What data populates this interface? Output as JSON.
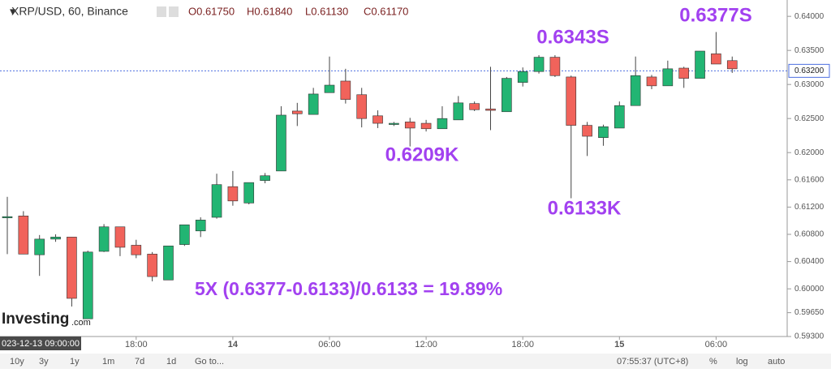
{
  "chart_data": {
    "type": "candlestick",
    "title": "XRP/USD, 60, Binance",
    "ohlc_legend": [
      "O0.61750",
      "H0.61840",
      "L0.61130",
      "C0.61170"
    ],
    "categories": [
      null,
      null,
      null,
      null,
      null,
      null,
      null,
      null,
      "18:00",
      null,
      null,
      null,
      null,
      null,
      "14",
      null,
      null,
      null,
      null,
      null,
      "06:00",
      null,
      null,
      null,
      null,
      null,
      "12:00",
      null,
      null,
      null,
      null,
      null,
      "18:00",
      null,
      null,
      null,
      null,
      null,
      "15",
      null,
      null,
      null,
      null,
      null,
      "06:00",
      null
    ],
    "series": {
      "open": [
        0.6106,
        0.6107,
        0.605,
        0.6073,
        0.6076,
        0.5956,
        0.6055,
        0.6091,
        0.6064,
        0.6051,
        0.6013,
        0.6065,
        0.6085,
        0.6105,
        0.615,
        0.6126,
        0.6159,
        0.6173,
        0.6261,
        0.6256,
        0.6288,
        0.6305,
        0.6285,
        0.6254,
        0.6243,
        0.6245,
        0.6243,
        0.6235,
        0.6248,
        0.6272,
        0.6264,
        0.626,
        0.6303,
        0.6319,
        0.634,
        0.6311,
        0.624,
        0.6222,
        0.6236,
        0.6269,
        0.6311,
        0.6298,
        0.6324,
        0.6309,
        0.6345,
        0.6335
      ],
      "high": [
        0.6135,
        0.6114,
        0.6079,
        0.608,
        0.6076,
        0.6056,
        0.6095,
        0.6091,
        0.6072,
        0.6054,
        0.6063,
        0.6094,
        0.6105,
        0.6169,
        0.6173,
        0.6156,
        0.617,
        0.6268,
        0.6273,
        0.6295,
        0.6341,
        0.6323,
        0.6295,
        0.6262,
        0.6245,
        0.6251,
        0.6248,
        0.6268,
        0.6283,
        0.6275,
        0.6326,
        0.6311,
        0.6325,
        0.6343,
        0.6343,
        0.6313,
        0.6245,
        0.6241,
        0.6275,
        0.6341,
        0.6314,
        0.6335,
        0.6326,
        0.6349,
        0.6377,
        0.6341
      ],
      "low": [
        0.6051,
        0.6051,
        0.6019,
        0.6069,
        0.5974,
        0.5956,
        0.6054,
        0.6048,
        0.6045,
        0.6011,
        0.6013,
        0.6063,
        0.6076,
        0.6103,
        0.6122,
        0.6124,
        0.6155,
        0.6173,
        0.6239,
        0.6256,
        0.6288,
        0.6272,
        0.6237,
        0.6236,
        0.6239,
        0.6209,
        0.6231,
        0.6235,
        0.6248,
        0.6261,
        0.6233,
        0.626,
        0.6297,
        0.6316,
        0.6311,
        0.6133,
        0.6195,
        0.621,
        0.6236,
        0.6269,
        0.6293,
        0.6298,
        0.6295,
        0.6309,
        0.633,
        0.6317
      ],
      "close": [
        0.6106,
        0.6051,
        0.6073,
        0.6076,
        0.5986,
        0.6054,
        0.6091,
        0.6061,
        0.605,
        0.6018,
        0.6063,
        0.6094,
        0.6101,
        0.6153,
        0.6129,
        0.6156,
        0.6166,
        0.6255,
        0.6257,
        0.6286,
        0.6299,
        0.6278,
        0.625,
        0.6243,
        0.6243,
        0.6236,
        0.6235,
        0.625,
        0.6273,
        0.6263,
        0.6262,
        0.6309,
        0.6319,
        0.634,
        0.6313,
        0.624,
        0.6224,
        0.6238,
        0.6269,
        0.6313,
        0.6298,
        0.6323,
        0.6309,
        0.6349,
        0.633,
        0.6323
      ]
    },
    "up_color": "#22b573",
    "down_color": "#f1635b",
    "ylim": [
      0.593,
      0.6424
    ],
    "yticks": [
      {
        "value": 0.64,
        "label": "0.64000"
      },
      {
        "value": 0.635,
        "label": "0.63500"
      },
      {
        "value": 0.63,
        "label": "0.63000"
      },
      {
        "value": 0.625,
        "label": "0.62500"
      },
      {
        "value": 0.62,
        "label": "0.62000"
      },
      {
        "value": 0.616,
        "label": "0.61600"
      },
      {
        "value": 0.612,
        "label": "0.61200"
      },
      {
        "value": 0.608,
        "label": "0.60800"
      },
      {
        "value": 0.604,
        "label": "0.60400"
      },
      {
        "value": 0.6,
        "label": "0.60000"
      },
      {
        "value": 0.5965,
        "label": "0.59650"
      },
      {
        "value": 0.593,
        "label": "0.59300"
      }
    ],
    "last_price": {
      "value": 0.632,
      "label": "0.63200"
    },
    "grid": false,
    "annotations": [
      "0.6377S",
      "0.6343S",
      "0.6209K",
      "0.6133K",
      "5X (0.6377-0.6133)/0.6133 = 19.89%"
    ],
    "annotation_color": "#a241f0",
    "crosshair_date": "023-12-13 09:00:00"
  },
  "logo": {
    "name": "Investing",
    "suffix": ".com"
  },
  "toolbar": {
    "ranges": [
      "10y",
      "3y",
      "1y",
      "1m",
      "7d",
      "1d",
      "Go to..."
    ],
    "clock": "07:55:37 (UTC+8)",
    "options": [
      "%",
      "log",
      "auto"
    ]
  }
}
